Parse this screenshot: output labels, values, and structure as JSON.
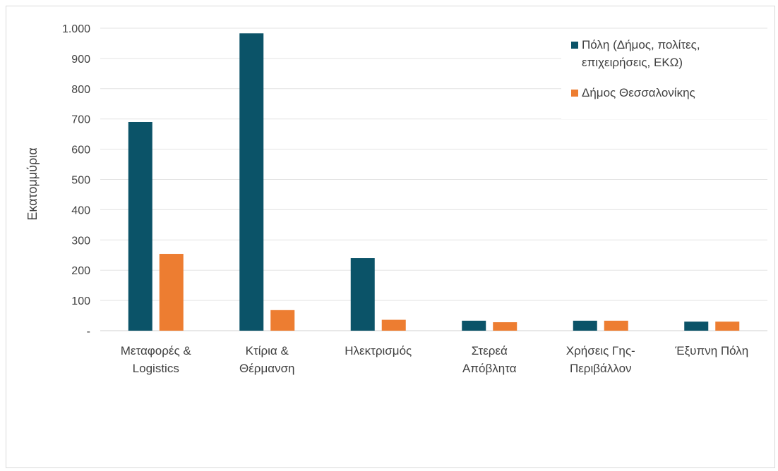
{
  "chart_data": {
    "type": "bar",
    "ylabel": "Εκατομμύρια",
    "ylim": [
      0,
      1000
    ],
    "yticks": [
      {
        "value": 0,
        "label": "-"
      },
      {
        "value": 100,
        "label": "100"
      },
      {
        "value": 200,
        "label": "200"
      },
      {
        "value": 300,
        "label": "300"
      },
      {
        "value": 400,
        "label": "400"
      },
      {
        "value": 500,
        "label": "500"
      },
      {
        "value": 600,
        "label": "600"
      },
      {
        "value": 700,
        "label": "700"
      },
      {
        "value": 800,
        "label": "800"
      },
      {
        "value": 900,
        "label": "900"
      },
      {
        "value": 1000,
        "label": "1.000"
      }
    ],
    "grid": true,
    "legend_position": "top-right",
    "categories": [
      [
        "Μεταφορές &",
        "Logistics"
      ],
      [
        "Κτίρια &",
        "Θέρμανση"
      ],
      [
        "Ηλεκτρισμός"
      ],
      [
        "Στερεά",
        "Απόβλητα"
      ],
      [
        "Χρήσεις Γης-",
        "Περιβάλλον"
      ],
      [
        "Έξυπνη Πόλη"
      ]
    ],
    "series": [
      {
        "name_lines": [
          "Πόλη (Δήμος, πολίτες,",
          "επιχειρήσεις, ΕΚΩ)"
        ],
        "color": "#0b5368",
        "values": [
          690,
          983,
          240,
          33,
          33,
          30
        ]
      },
      {
        "name_lines": [
          "Δήμος Θεσσαλονίκης"
        ],
        "color": "#ed7d31",
        "values": [
          254,
          68,
          36,
          28,
          33,
          30
        ]
      }
    ]
  }
}
